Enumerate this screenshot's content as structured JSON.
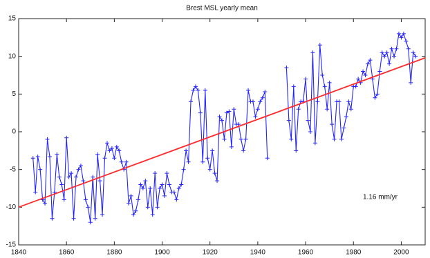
{
  "chart_data": {
    "type": "line",
    "title": "Brest MSL yearly mean",
    "annotation": "1.16 mm/yr",
    "xlim": [
      1840,
      2010
    ],
    "xticks": [
      1840,
      1860,
      1880,
      1900,
      1920,
      1940,
      1960,
      1980,
      2000
    ],
    "ylim": [
      -15,
      15
    ],
    "yticks": [
      -15,
      -10,
      -5,
      0,
      5,
      10,
      15
    ],
    "grid": false,
    "series": [
      {
        "color": "#2323ff",
        "marker": "+",
        "x": [
          1846,
          1847,
          1848,
          1849,
          1850,
          1851,
          1852,
          1853,
          1854,
          1855,
          1856,
          1857,
          1858,
          1859,
          1860,
          1861,
          1862,
          1863,
          1864,
          1865,
          1866,
          1867,
          1868,
          1869,
          1870,
          1871,
          1872,
          1873,
          1874,
          1875,
          1876,
          1877,
          1878,
          1879,
          1880,
          1881,
          1882,
          1883,
          1884,
          1885,
          1886,
          1887,
          1888,
          1889,
          1890,
          1891,
          1892,
          1893,
          1894,
          1895,
          1896,
          1897,
          1898,
          1899,
          1900,
          1901,
          1902,
          1903,
          1904,
          1905,
          1906,
          1907,
          1908,
          1909,
          1910,
          1911,
          1912,
          1913,
          1914,
          1915,
          1916,
          1917,
          1918,
          1919,
          1920,
          1921,
          1922,
          1923,
          1924,
          1925,
          1926,
          1927,
          1928,
          1929,
          1930,
          1931,
          1932,
          1933,
          1934,
          1935,
          1936,
          1937,
          1938,
          1939,
          1940,
          1941,
          1942,
          1943,
          1944,
          1948,
          1952,
          1953,
          1954,
          1955,
          1956,
          1957,
          1958,
          1959,
          1960,
          1961,
          1962,
          1963,
          1964,
          1965,
          1966,
          1967,
          1968,
          1969,
          1970,
          1971,
          1972,
          1973,
          1974,
          1975,
          1976,
          1977,
          1978,
          1979,
          1980,
          1981,
          1982,
          1983,
          1984,
          1985,
          1986,
          1987,
          1988,
          1989,
          1990,
          1991,
          1992,
          1993,
          1994,
          1995,
          1996,
          1997,
          1998,
          1999,
          2000,
          2001,
          2002,
          2003,
          2004,
          2005,
          2006
        ],
        "values": [
          -3.5,
          -8,
          -3.3,
          -5,
          -9,
          -9.5,
          -1,
          -3.3,
          -11.5,
          -8,
          -3,
          -6,
          -7,
          -9,
          -0.8,
          -6,
          -5.5,
          -11.5,
          -6,
          -5,
          -4.5,
          -6.5,
          -9,
          -10,
          -12,
          -6,
          -11.5,
          -3,
          -6.5,
          -11,
          -3.5,
          -1.5,
          -2.5,
          -2.2,
          -3.5,
          -2,
          -2.5,
          -4,
          -5,
          -4,
          -9.5,
          -8.5,
          -11,
          -10.5,
          -9,
          -7,
          -7.5,
          -6.5,
          -10,
          -7.5,
          -11,
          -5.5,
          -10,
          -7.5,
          -7,
          -8.5,
          -5.5,
          -7,
          -8,
          -8,
          -9,
          -7.5,
          -7,
          -5,
          -2.5,
          -4,
          4,
          5.5,
          6,
          5.5,
          2.5,
          -4,
          5.5,
          -3.5,
          -5,
          -2.5,
          -5.5,
          -6.5,
          2,
          1.5,
          -1,
          2.5,
          2.7,
          -2,
          3,
          1,
          1,
          -1,
          -2.5,
          -1,
          5.5,
          4,
          4,
          2,
          3,
          4,
          4.5,
          5.3,
          -3.5,
          null,
          8.5,
          1.5,
          -1,
          6,
          -2.5,
          3,
          4,
          4,
          7,
          1.5,
          0,
          10.5,
          -1.5,
          4,
          11.5,
          7.5,
          6,
          3,
          6.5,
          1,
          -1,
          4,
          4,
          -1,
          0.5,
          2,
          4,
          3,
          6,
          6,
          7,
          6.5,
          8,
          7.5,
          9,
          9.5,
          7,
          4.5,
          5,
          8,
          10.5,
          10,
          10.5,
          9,
          11,
          10,
          11,
          13,
          12.5,
          13,
          12,
          11,
          6.5,
          10.5,
          10
        ]
      },
      {
        "color": "#ff2a2a",
        "x": [
          1840,
          2010
        ],
        "values": [
          -10,
          9.8
        ]
      }
    ]
  }
}
